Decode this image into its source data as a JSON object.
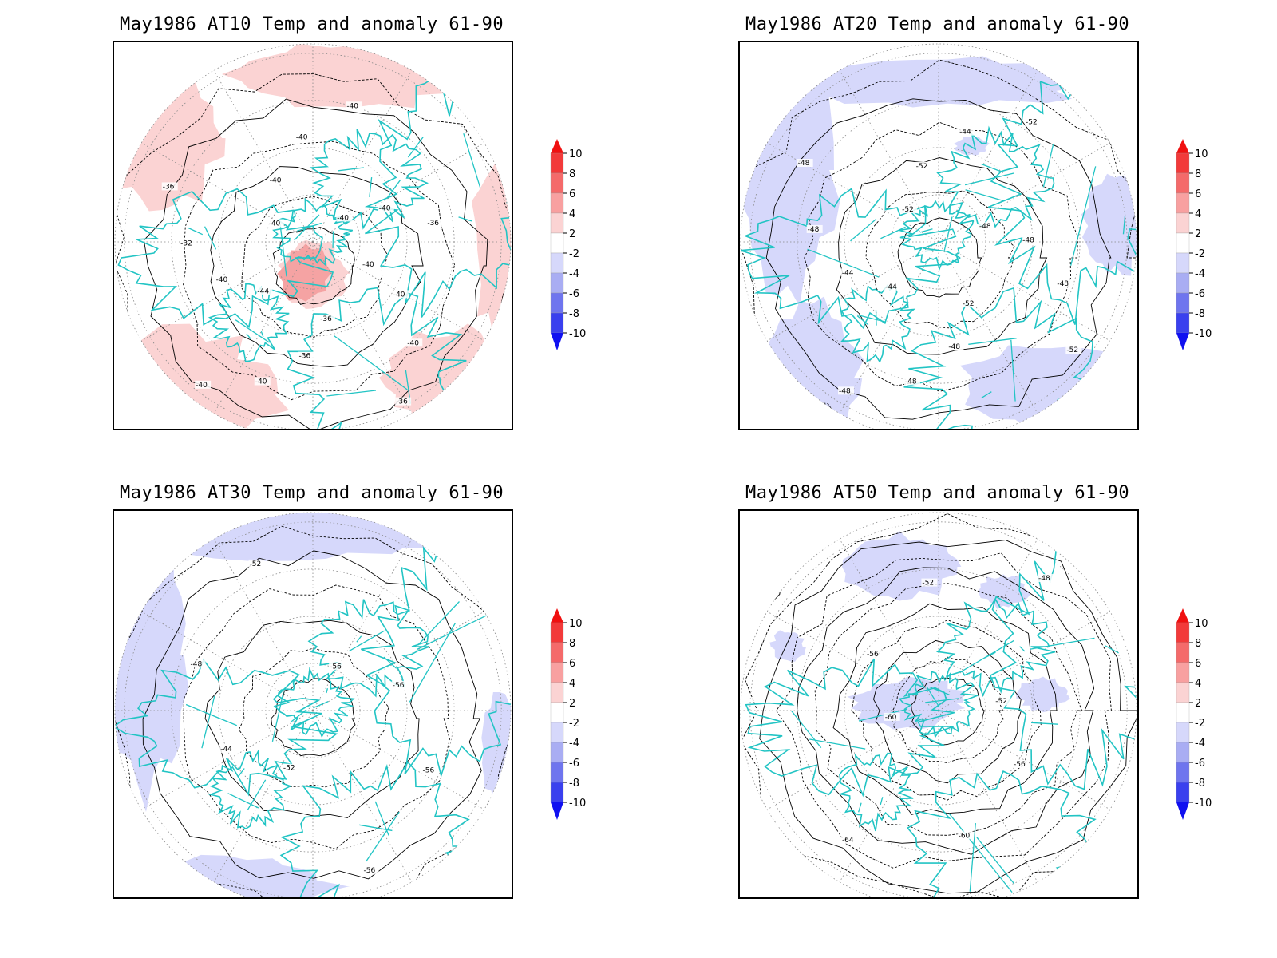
{
  "colors": {
    "coastline": "#22c4c4",
    "warm_anomaly_light": "#fbd3d3",
    "warm_anomaly_mid": "#f5a3a3",
    "cold_anomaly_light": "#d6d8fb",
    "cold_anomaly_mid": "#a9adf3",
    "contour": "#000000",
    "grid": "#888888"
  },
  "colorbar": {
    "levels": [
      "10",
      "8",
      "6",
      "4",
      "2",
      "-2",
      "-4",
      "-6",
      "-8",
      "-10"
    ],
    "colors": [
      "#f01010",
      "#f23a3a",
      "#f46a6a",
      "#f8a0a0",
      "#fbd3d3",
      "#ffffff",
      "#d6d8fb",
      "#a9adf3",
      "#6f75ee",
      "#3a40ee",
      "#1010f0"
    ]
  },
  "panels": [
    {
      "title": "May1986 AT10 Temp and anomaly 61-90",
      "anomaly": "warm",
      "contour_labels": [
        "-40",
        "-40",
        "-40",
        "-36",
        "-36",
        "-36",
        "-40",
        "-40",
        "-44",
        "-40",
        "-32",
        "-36",
        "-40",
        "-40",
        "-40",
        "-40",
        "-40",
        "-40",
        "-36"
      ]
    },
    {
      "title": "May1986 AT20 Temp and anomaly 61-90",
      "anomaly": "cold",
      "contour_labels": [
        "-52",
        "-48",
        "-48",
        "-48",
        "-44",
        "-44",
        "-48",
        "-48",
        "-52",
        "-52",
        "-44",
        "-52",
        "-48",
        "-48",
        "-48",
        "-52"
      ]
    },
    {
      "title": "May1986 AT30 Temp and anomaly 61-90",
      "anomaly": "cold",
      "contour_labels": [
        "-52",
        "-44",
        "-48",
        "-52",
        "-56",
        "-56",
        "-56",
        "-56"
      ]
    },
    {
      "title": "May1986 AT50 Temp and anomaly 61-90",
      "anomaly": "cold",
      "contour_labels": [
        "-60",
        "-56",
        "-52",
        "-48",
        "-52",
        "-56",
        "-60",
        "-64"
      ]
    }
  ]
}
